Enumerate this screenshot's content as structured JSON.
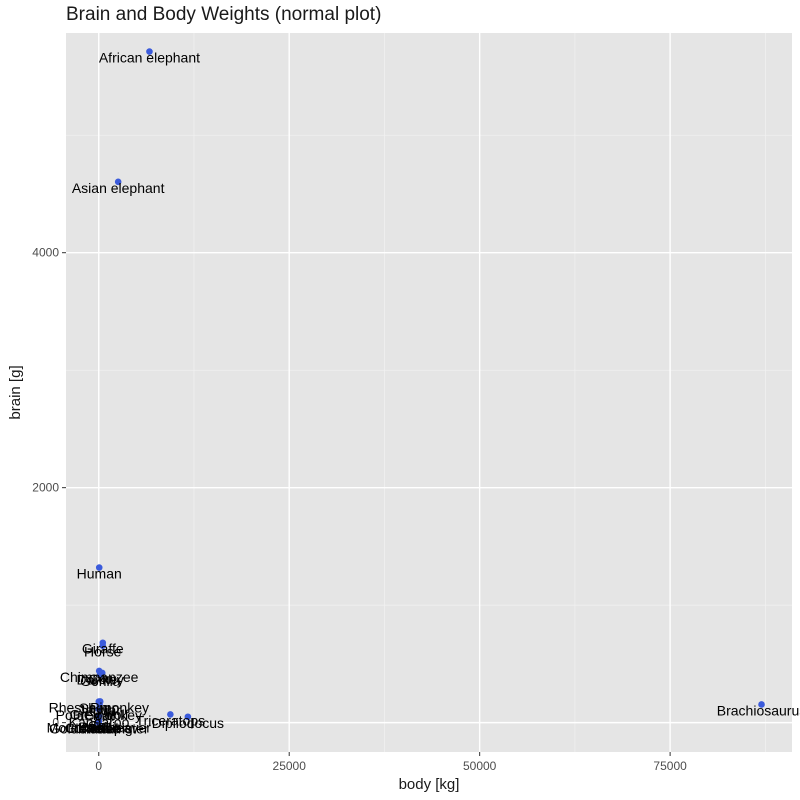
{
  "chart_data": {
    "type": "scatter",
    "title": "Brain and Body Weights (normal plot)",
    "xlabel": "body [kg]",
    "ylabel": "brain [g]",
    "xlim": [
      -4300,
      91000
    ],
    "ylim": [
      -250,
      5870
    ],
    "x_ticks": [
      0,
      25000,
      50000,
      75000
    ],
    "x_tick_labels": [
      "0",
      "25000",
      "50000",
      "75000"
    ],
    "y_ticks": [
      0,
      2000,
      4000
    ],
    "y_tick_labels": [
      "0",
      "2000",
      "4000"
    ],
    "grid": true,
    "point_color": "#3b5bdb",
    "points": [
      {
        "x": 1.35,
        "y": 8.1,
        "label": "Mountain beaver"
      },
      {
        "x": 465,
        "y": 423,
        "label": "Cow"
      },
      {
        "x": 36.33,
        "y": 119.5,
        "label": "Grey wolf"
      },
      {
        "x": 27.66,
        "y": 115,
        "label": "Goat"
      },
      {
        "x": 1.04,
        "y": 5.5,
        "label": "Guinea pig"
      },
      {
        "x": 11700,
        "y": 50,
        "label": "Dipliodocus"
      },
      {
        "x": 2547,
        "y": 4603,
        "label": "Asian elephant"
      },
      {
        "x": 187.1,
        "y": 419,
        "label": "Donkey"
      },
      {
        "x": 521,
        "y": 655,
        "label": "Horse"
      },
      {
        "x": 10,
        "y": 115,
        "label": "Potar monkey"
      },
      {
        "x": 3.3,
        "y": 25.6,
        "label": "Cat"
      },
      {
        "x": 529,
        "y": 680,
        "label": "Giraffe"
      },
      {
        "x": 207,
        "y": 406,
        "label": "Gorilla"
      },
      {
        "x": 62,
        "y": 1320,
        "label": "Human"
      },
      {
        "x": 6654,
        "y": 5712,
        "label": "African elephant"
      },
      {
        "x": 9400,
        "y": 70,
        "label": "Triceratops"
      },
      {
        "x": 6.8,
        "y": 179,
        "label": "Rhesus monkey"
      },
      {
        "x": 35,
        "y": 56,
        "label": "Kangaroo"
      },
      {
        "x": 0.12,
        "y": 1,
        "label": "Golden hamster"
      },
      {
        "x": 0.023,
        "y": 0.4,
        "label": "Mouse"
      },
      {
        "x": 2.5,
        "y": 12.1,
        "label": "Rabbit"
      },
      {
        "x": 55.5,
        "y": 175,
        "label": "Sheep"
      },
      {
        "x": 100,
        "y": 157,
        "label": "Jaguar"
      },
      {
        "x": 52.16,
        "y": 440,
        "label": "Chimpanzee"
      },
      {
        "x": 0.28,
        "y": 1.9,
        "label": "Rat"
      },
      {
        "x": 87000,
        "y": 154.5,
        "label": "Brachiosaurus"
      },
      {
        "x": 0.122,
        "y": 3,
        "label": "Mole"
      },
      {
        "x": 192,
        "y": 180,
        "label": "Pig"
      }
    ]
  }
}
